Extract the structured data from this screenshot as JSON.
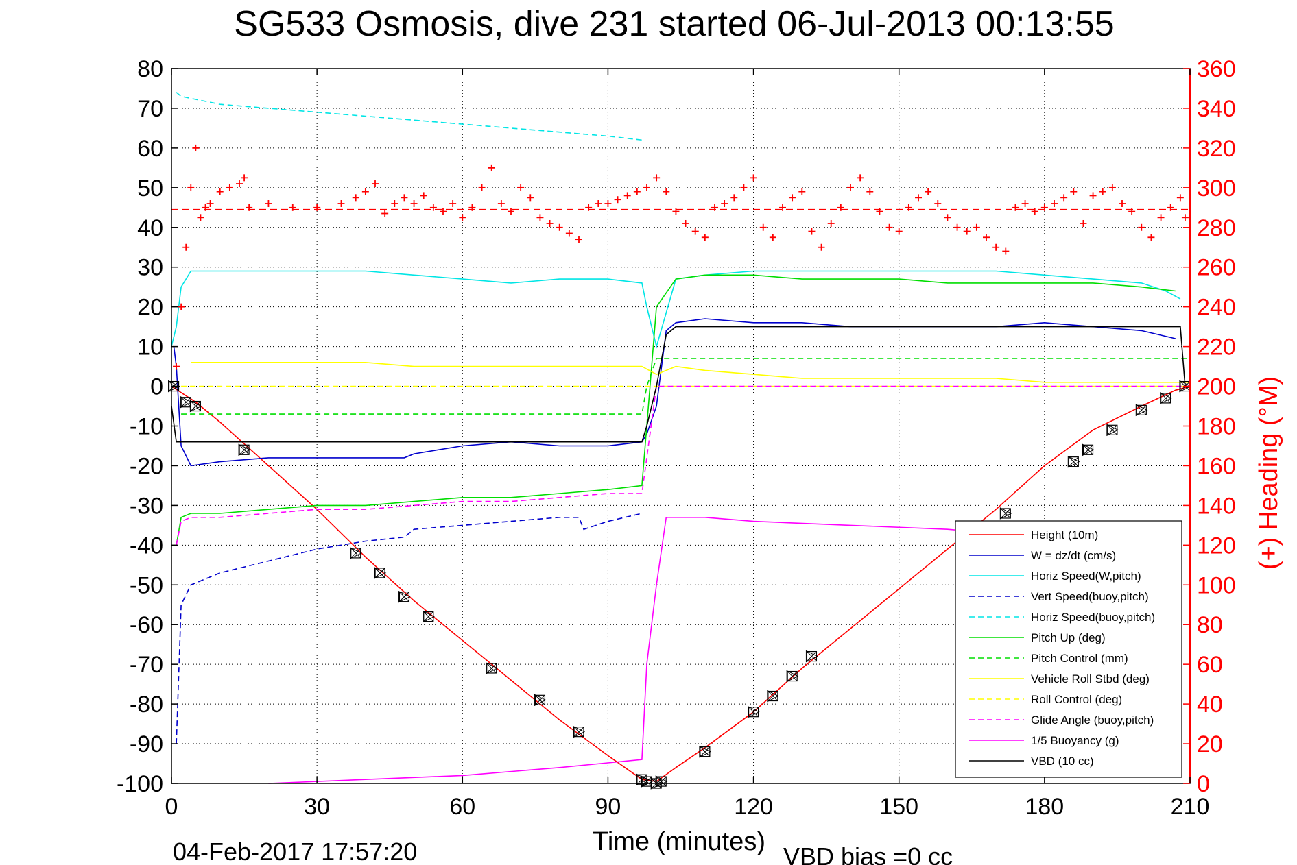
{
  "chart_data": {
    "type": "line",
    "title": "SG533 Osmosis, dive 231 started 06-Jul-2013 00:13:55",
    "xlabel": "Time (minutes)",
    "ylabel": "",
    "ylabel_right": "(+) Heading (°M)",
    "xlim": [
      0,
      210
    ],
    "ylim": [
      -100,
      80
    ],
    "ylim_right": [
      0,
      360
    ],
    "xticks": [
      "0",
      "30",
      "60",
      "90",
      "120",
      "150",
      "180",
      "210"
    ],
    "yticks": [
      "80",
      "70",
      "60",
      "50",
      "40",
      "30",
      "20",
      "10",
      "0",
      "-10",
      "-20",
      "-30",
      "-40",
      "-50",
      "-60",
      "-70",
      "-80",
      "-90",
      "-100"
    ],
    "yticks_right": [
      "360",
      "340",
      "320",
      "300",
      "280",
      "260",
      "240",
      "220",
      "200",
      "180",
      "160",
      "140",
      "120",
      "100",
      "80",
      "60",
      "40",
      "20",
      "0"
    ],
    "grid": true,
    "legend_position": "lower-right",
    "footer_left": "04-Feb-2017 17:57:20",
    "footer_right": "VBD bias =0 cc",
    "colors": {
      "red": "#ff0000",
      "blue": "#0000cc",
      "cyan": "#00e5e5",
      "green": "#00dd00",
      "yellow": "#ffff00",
      "magenta": "#ff00ff",
      "black": "#000000"
    },
    "series": [
      {
        "name": "Height (10m)",
        "color": "#ff0000",
        "dash": "solid",
        "x": [
          0,
          5,
          10,
          20,
          30,
          40,
          50,
          60,
          70,
          80,
          90,
          97,
          100,
          104,
          110,
          120,
          130,
          140,
          150,
          160,
          170,
          180,
          190,
          200,
          207,
          210
        ],
        "y": [
          0,
          -4,
          -9,
          -20,
          -31,
          -43,
          -54,
          -64,
          -74,
          -84,
          -93,
          -99,
          -99.5,
          -96,
          -91,
          -82,
          -71,
          -61,
          -51,
          -41,
          -31,
          -20,
          -11,
          -5,
          -1,
          0
        ]
      },
      {
        "name": "W = dz/dt (cm/s)",
        "color": "#0000cc",
        "dash": "solid",
        "x": [
          0.5,
          1,
          2,
          4,
          10,
          20,
          30,
          40,
          48,
          50,
          60,
          70,
          80,
          90,
          97,
          98,
          100,
          102,
          104,
          110,
          120,
          130,
          140,
          150,
          160,
          170,
          180,
          190,
          200,
          207
        ],
        "y": [
          10,
          5,
          -15,
          -20,
          -19,
          -18,
          -18,
          -18,
          -18,
          -17,
          -15,
          -14,
          -15,
          -15,
          -14,
          -12,
          -5,
          14,
          16,
          17,
          16,
          16,
          15,
          15,
          15,
          15,
          16,
          15,
          14,
          12
        ]
      },
      {
        "name": "Horiz Speed(W,pitch)",
        "color": "#00e5e5",
        "dash": "solid",
        "x": [
          0,
          1,
          2,
          4,
          10,
          20,
          30,
          40,
          50,
          60,
          70,
          80,
          90,
          97,
          98,
          100,
          104,
          110,
          120,
          130,
          140,
          150,
          160,
          170,
          180,
          190,
          200,
          205,
          208
        ],
        "y": [
          10,
          15,
          25,
          29,
          29,
          29,
          29,
          29,
          28,
          27,
          26,
          27,
          27,
          26,
          20,
          10,
          27,
          28,
          29,
          29,
          29,
          29,
          29,
          29,
          28,
          27,
          26,
          24,
          22
        ]
      },
      {
        "name": "Vert Speed(buoy,pitch)",
        "color": "#0000cc",
        "dash": "dashed",
        "x": [
          1,
          2,
          4,
          10,
          20,
          30,
          40,
          48,
          50,
          60,
          70,
          80,
          84,
          85,
          90,
          97
        ],
        "y": [
          -90,
          -55,
          -50,
          -47,
          -44,
          -41,
          -39,
          -38,
          -36,
          -35,
          -34,
          -33,
          -33,
          -36,
          -34,
          -32
        ]
      },
      {
        "name": "Horiz Speed(buoy,pitch)",
        "color": "#00e5e5",
        "dash": "dashed",
        "x": [
          1,
          2,
          10,
          20,
          30,
          40,
          50,
          60,
          70,
          80,
          90,
          97
        ],
        "y": [
          74,
          73,
          71,
          70,
          69,
          68,
          67,
          66,
          65,
          64,
          63,
          62
        ]
      },
      {
        "name": "Pitch Up (deg)",
        "color": "#00dd00",
        "dash": "solid",
        "x": [
          1,
          2,
          4,
          10,
          20,
          30,
          40,
          50,
          60,
          70,
          80,
          90,
          97,
          98,
          100,
          104,
          110,
          120,
          130,
          140,
          150,
          160,
          170,
          180,
          190,
          200,
          207
        ],
        "y": [
          -40,
          -33,
          -32,
          -32,
          -31,
          -30,
          -30,
          -29,
          -28,
          -28,
          -27,
          -26,
          -25,
          -10,
          20,
          27,
          28,
          28,
          27,
          27,
          27,
          26,
          26,
          26,
          26,
          25,
          24
        ]
      },
      {
        "name": "Pitch Control (mm)",
        "color": "#00dd00",
        "dash": "dashed",
        "x": [
          2,
          97,
          98,
          100,
          210
        ],
        "y": [
          -7,
          -7,
          0,
          7,
          7
        ]
      },
      {
        "name": "Vehicle Roll Stbd (deg)",
        "color": "#ffff00",
        "dash": "solid",
        "x": [
          4,
          10,
          20,
          30,
          40,
          50,
          60,
          70,
          80,
          85,
          86,
          90,
          97,
          100,
          104,
          110,
          120,
          130,
          140,
          150,
          160,
          170,
          180,
          190,
          200,
          210
        ],
        "y": [
          6,
          6,
          6,
          6,
          6,
          5,
          5,
          5,
          5,
          5,
          5,
          5,
          5,
          3,
          5,
          4,
          3,
          2,
          2,
          2,
          2,
          2,
          1,
          1,
          1,
          1
        ]
      },
      {
        "name": "Roll Control (deg)",
        "color": "#ffff00",
        "dash": "dashed",
        "x": [
          2,
          97,
          100,
          210
        ],
        "y": [
          0,
          0,
          0,
          0
        ]
      },
      {
        "name": "Glide Angle (buoy,pitch)",
        "color": "#ff00ff",
        "dash": "dashed",
        "x": [
          1,
          2,
          4,
          10,
          20,
          30,
          40,
          50,
          60,
          70,
          80,
          90,
          97,
          100,
          210
        ],
        "y": [
          -40,
          -34,
          -33,
          -33,
          -32,
          -31,
          -31,
          -30,
          -29,
          -29,
          -28,
          -27,
          -27,
          0,
          0
        ]
      },
      {
        "name": "1/5 Buoyancy (g)",
        "color": "#ff00ff",
        "dash": "solid",
        "x": [
          20,
          40,
          60,
          80,
          97,
          98,
          100,
          102,
          110,
          120,
          140,
          160,
          180,
          200,
          208
        ],
        "y": [
          -100,
          -99,
          -98,
          -96,
          -94,
          -70,
          -50,
          -33,
          -33,
          -34,
          -35,
          -36,
          -38,
          -40,
          -47
        ]
      },
      {
        "name": "VBD (10 cc)",
        "color": "#000000",
        "dash": "solid",
        "x": [
          0,
          1,
          2,
          97,
          98,
          100,
          102,
          104,
          208,
          209
        ],
        "y": [
          -5,
          -14,
          -14,
          -14,
          -10,
          0,
          13,
          15,
          15,
          0
        ]
      }
    ],
    "heading": {
      "name": "Heading",
      "axis": "right",
      "color": "#ff0000",
      "marker": "+",
      "x": [
        1,
        2,
        3,
        4,
        5,
        6,
        7,
        8,
        10,
        12,
        14,
        15,
        16,
        20,
        25,
        30,
        35,
        38,
        40,
        42,
        44,
        46,
        48,
        50,
        52,
        54,
        56,
        58,
        60,
        62,
        64,
        66,
        68,
        70,
        72,
        74,
        76,
        78,
        80,
        82,
        84,
        86,
        88,
        90,
        92,
        94,
        96,
        98,
        100,
        102,
        104,
        106,
        108,
        110,
        112,
        114,
        116,
        118,
        120,
        122,
        124,
        126,
        128,
        130,
        132,
        134,
        136,
        138,
        140,
        142,
        144,
        146,
        148,
        150,
        152,
        154,
        156,
        158,
        160,
        162,
        164,
        166,
        168,
        170,
        172,
        174,
        176,
        178,
        180,
        182,
        184,
        186,
        188,
        190,
        192,
        194,
        196,
        198,
        200,
        202,
        204,
        206,
        208,
        209
      ],
      "y": [
        210,
        240,
        270,
        300,
        320,
        285,
        290,
        292,
        298,
        300,
        302,
        305,
        290,
        292,
        290,
        290,
        292,
        295,
        298,
        302,
        287,
        292,
        295,
        292,
        296,
        290,
        288,
        292,
        285,
        290,
        300,
        310,
        292,
        288,
        300,
        295,
        285,
        282,
        280,
        277,
        274,
        290,
        292,
        292,
        294,
        296,
        298,
        300,
        305,
        298,
        288,
        282,
        278,
        275,
        290,
        292,
        295,
        300,
        305,
        280,
        275,
        290,
        295,
        298,
        278,
        270,
        282,
        290,
        300,
        305,
        298,
        288,
        280,
        278,
        290,
        295,
        298,
        292,
        285,
        280,
        278,
        280,
        275,
        270,
        268,
        290,
        292,
        288,
        290,
        292,
        295,
        298,
        282,
        296,
        298,
        300,
        292,
        288,
        280,
        275,
        285,
        290,
        295,
        285
      ]
    },
    "heading_target": {
      "name": "Target heading",
      "axis": "right",
      "color": "#ff0000",
      "dash": "dashed",
      "value": 289
    },
    "markers": {
      "name": "sample markers",
      "color": "#000000",
      "x": [
        0.5,
        3,
        5,
        15,
        38,
        43,
        48,
        53,
        66,
        76,
        84,
        97,
        98,
        100,
        101,
        110,
        120,
        124,
        128,
        132,
        172,
        186,
        189,
        194,
        200,
        205,
        209
      ],
      "y": [
        0,
        -4,
        -5,
        -16,
        -42,
        -47,
        -53,
        -58,
        -71,
        -79,
        -87,
        -99,
        -99.5,
        -100,
        -99.5,
        -92,
        -82,
        -78,
        -73,
        -68,
        -32,
        -19,
        -16,
        -11,
        -6,
        -3,
        0
      ]
    }
  }
}
